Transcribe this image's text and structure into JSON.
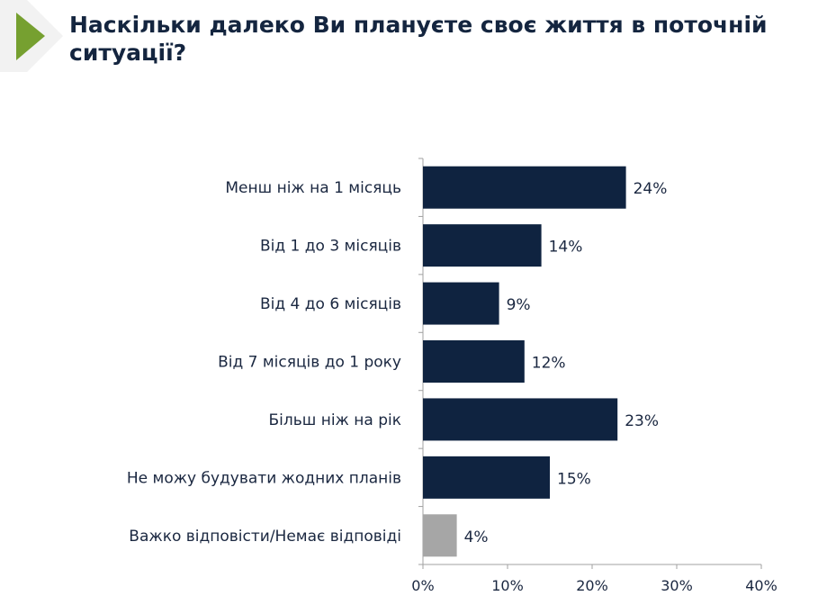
{
  "title": "Наскільки далеко Ви плануєте своє життя в поточній ситуації?",
  "colors": {
    "bar": "#0f2340",
    "bar_other": "#a6a6a6",
    "accent": "#76a030",
    "text": "#14253f"
  },
  "chart_data": {
    "type": "bar",
    "orientation": "horizontal",
    "title": "Наскільки далеко Ви плануєте своє життя в поточній ситуації?",
    "categories": [
      "Менш ніж на 1 місяць",
      "Від 1 до 3 місяців",
      "Від 4 до 6 місяців",
      "Від 7 місяців до 1 року",
      "Більш ніж на рік",
      "Не можу будувати жодних планів",
      "Важко відповісти/Немає відповіді"
    ],
    "values": [
      24,
      14,
      9,
      12,
      23,
      15,
      4
    ],
    "value_labels": [
      "24%",
      "14%",
      "9%",
      "12%",
      "23%",
      "15%",
      "4%"
    ],
    "xlim": [
      0,
      40
    ],
    "xticks": [
      0,
      10,
      20,
      30,
      40
    ],
    "xtick_labels": [
      "0%",
      "10%",
      "20%",
      "30%",
      "40%"
    ],
    "xlabel": "",
    "ylabel": "",
    "grid": false,
    "legend": "none"
  }
}
